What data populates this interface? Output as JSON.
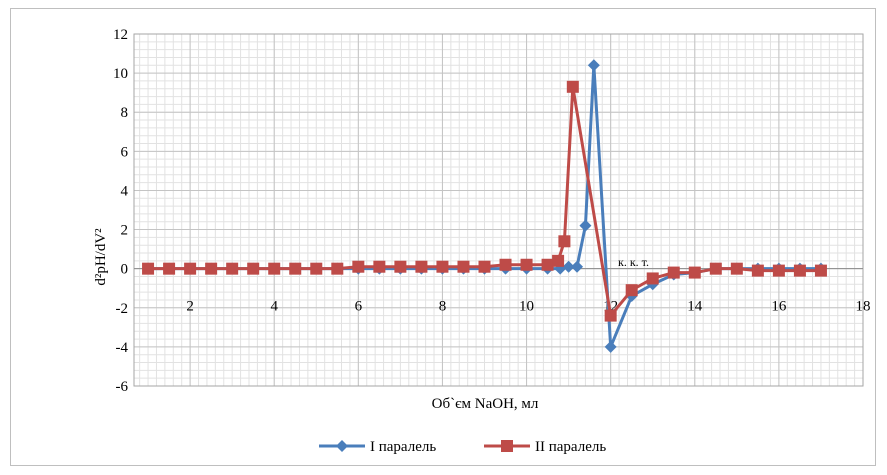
{
  "chart_data": {
    "type": "line",
    "title": "",
    "xlabel": "Об`єм NaOH, мл",
    "ylabel": "d²pH/dV²",
    "xlim": [
      0,
      18
    ],
    "ylim": [
      -6,
      12
    ],
    "x_ticks": [
      2,
      4,
      6,
      8,
      10,
      12,
      14,
      16,
      18
    ],
    "x_tick_labels": [
      "2",
      "4",
      "6",
      "8",
      "10",
      "12",
      "14",
      "16",
      "18"
    ],
    "y_ticks": [
      -6,
      -4,
      -2,
      0,
      2,
      4,
      6,
      8,
      10,
      12
    ],
    "y_tick_labels": [
      "-6",
      "-4",
      "-2",
      "0",
      "2",
      "4",
      "6",
      "8",
      "10",
      "12"
    ],
    "grid": true,
    "legend_position": "bottom",
    "annotation": "к. к. т.",
    "series": [
      {
        "name": "I паралель",
        "color": "#4a7ebb",
        "marker": "diamond",
        "x": [
          1.0,
          1.5,
          2.0,
          2.5,
          3.0,
          3.5,
          4.0,
          4.5,
          5.0,
          5.5,
          6.0,
          6.5,
          7.0,
          7.5,
          8.0,
          8.5,
          9.0,
          9.5,
          10.0,
          10.5,
          10.8,
          11.0,
          11.2,
          11.4,
          11.6,
          12.0,
          12.5,
          13.0,
          13.5,
          14.0,
          14.5,
          15.0,
          15.5,
          16.0,
          16.5,
          17.0
        ],
        "y": [
          0,
          0,
          0,
          0,
          0,
          0,
          0,
          0,
          0,
          0,
          0,
          0,
          0,
          0,
          0,
          0,
          0,
          0,
          0,
          0,
          0,
          0.1,
          0.1,
          2.2,
          10.4,
          -4.0,
          -1.4,
          -0.8,
          -0.3,
          -0.2,
          0,
          0,
          0,
          0,
          0,
          0
        ]
      },
      {
        "name": "II паралель",
        "color": "#be4b48",
        "marker": "square",
        "x": [
          1.0,
          1.5,
          2.0,
          2.5,
          3.0,
          3.5,
          4.0,
          4.5,
          5.0,
          5.5,
          6.0,
          6.5,
          7.0,
          7.5,
          8.0,
          8.5,
          9.0,
          9.5,
          10.0,
          10.5,
          10.75,
          10.9,
          11.1,
          12.0,
          12.5,
          13.0,
          13.5,
          14.0,
          14.5,
          15.0,
          15.5,
          16.0,
          16.5,
          17.0
        ],
        "y": [
          0,
          0,
          0,
          0,
          0,
          0,
          0,
          0,
          0,
          0,
          0.1,
          0.1,
          0.1,
          0.1,
          0.1,
          0.1,
          0.1,
          0.2,
          0.2,
          0.2,
          0.4,
          1.4,
          9.3,
          -2.4,
          -1.1,
          -0.5,
          -0.2,
          -0.2,
          0,
          0,
          -0.1,
          -0.1,
          -0.1,
          -0.1
        ]
      }
    ]
  }
}
